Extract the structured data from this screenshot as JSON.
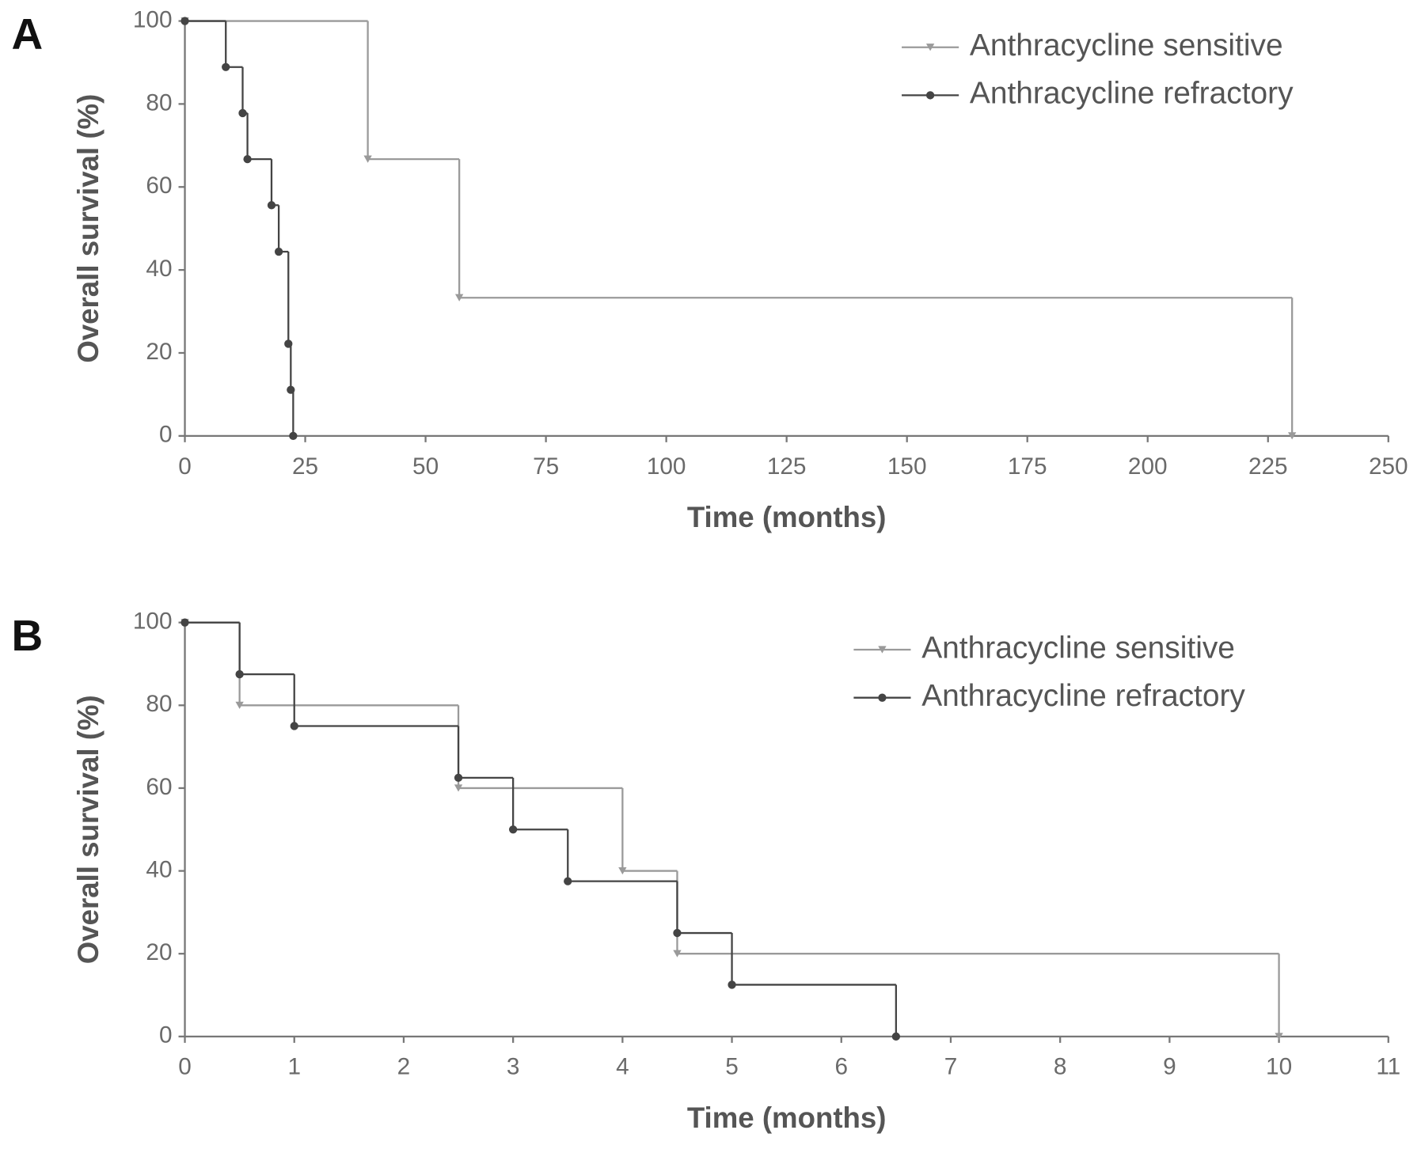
{
  "chart_data": [
    {
      "type": "step",
      "panel_label": "A",
      "x_label": "Time (months)",
      "y_label": "Overall survival (%)",
      "xlim": [
        0,
        250
      ],
      "xticks": [
        0,
        25,
        50,
        75,
        100,
        125,
        150,
        175,
        200,
        225,
        250
      ],
      "ylim": [
        0,
        100
      ],
      "yticks": [
        0,
        20,
        40,
        60,
        80,
        100
      ],
      "legend": "upper right",
      "series": [
        {
          "name": "Anthracycline sensitive",
          "color": "#9a9a9a",
          "marker": "triangle",
          "x": [
            0,
            38,
            57,
            230
          ],
          "values": [
            100,
            66.7,
            33.3,
            0
          ]
        },
        {
          "name": "Anthracycline refractory",
          "color": "#444444",
          "marker": "circle",
          "x": [
            0,
            8.5,
            12,
            13,
            18,
            19.5,
            21.5,
            22,
            22.5
          ],
          "values": [
            100,
            88.9,
            77.8,
            66.7,
            55.6,
            44.4,
            22.2,
            11.1,
            0
          ]
        }
      ]
    },
    {
      "type": "step",
      "panel_label": "B",
      "x_label": "Time (months)",
      "y_label": "Overall survival (%)",
      "xlim": [
        0,
        11
      ],
      "xticks": [
        0,
        1,
        2,
        3,
        4,
        5,
        6,
        7,
        8,
        9,
        10,
        11
      ],
      "ylim": [
        0,
        100
      ],
      "yticks": [
        0,
        20,
        40,
        60,
        80,
        100
      ],
      "legend": "upper right",
      "series": [
        {
          "name": "Anthracycline sensitive",
          "color": "#9a9a9a",
          "marker": "triangle",
          "x": [
            0,
            0.5,
            2.5,
            4,
            4.5,
            10
          ],
          "values": [
            100,
            80,
            60,
            40,
            20,
            0
          ]
        },
        {
          "name": "Anthracycline refractory",
          "color": "#444444",
          "marker": "circle",
          "x": [
            0,
            0.5,
            1,
            2.5,
            3,
            3.5,
            4.5,
            5,
            6.5
          ],
          "values": [
            100,
            87.5,
            75,
            62.5,
            50,
            37.5,
            25,
            12.5,
            0
          ]
        }
      ]
    }
  ]
}
